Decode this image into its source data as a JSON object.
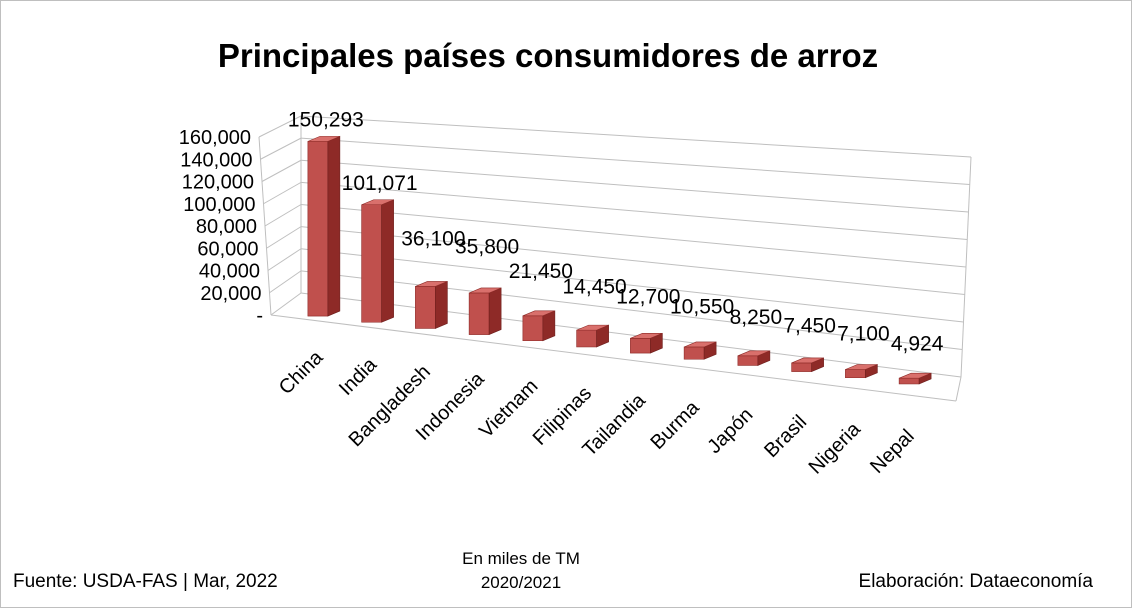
{
  "chart_data": {
    "type": "bar",
    "title": "Principales países consumidores de arroz",
    "categories": [
      "China",
      "India",
      "Bangladesh",
      "Indonesia",
      "Vietnam",
      "Filipinas",
      "Tailandia",
      "Burma",
      "Japón",
      "Brasil",
      "Nigeria",
      "Nepal"
    ],
    "values": [
      150293,
      101071,
      36100,
      35800,
      21450,
      14450,
      12700,
      10550,
      8250,
      7450,
      7100,
      4924
    ],
    "data_labels": [
      "150,293",
      "101,071",
      "36,100",
      "35,800",
      "21,450",
      "14,450",
      "12,700",
      "10,550",
      "8,250",
      "7,450",
      "7,100",
      "4,924"
    ],
    "y_ticks": [
      "-",
      "20,000",
      "40,000",
      "60,000",
      "80,000",
      "100,000",
      "120,000",
      "140,000",
      "160,000"
    ],
    "ylim": [
      0,
      160000
    ],
    "grid": true,
    "legend": "none",
    "bar_color": "#c0504d",
    "bar_side_color": "#8e2a27",
    "bar_top_color": "#d9706c",
    "unit_note": "En miles de TM",
    "period": "2020/2021"
  },
  "footer": {
    "source": "Fuente:  USDA-FAS | Mar, 2022",
    "credit": "Elaboración: Dataeconomía"
  }
}
